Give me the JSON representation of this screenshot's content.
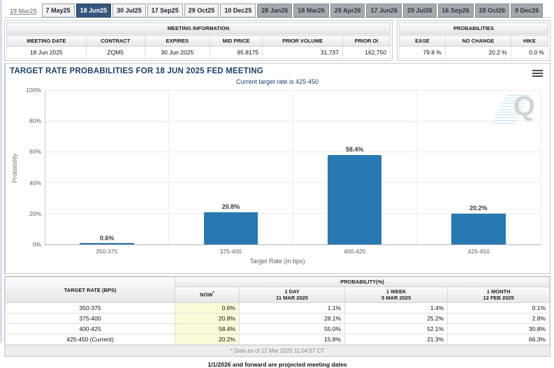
{
  "tabs": [
    {
      "label": "19 Mar25",
      "state": "past"
    },
    {
      "label": "7 May25",
      "state": "y25"
    },
    {
      "label": "18 Jun25",
      "state": "active"
    },
    {
      "label": "30 Jul25",
      "state": "y25"
    },
    {
      "label": "17 Sep25",
      "state": "y25"
    },
    {
      "label": "29 Oct25",
      "state": "y25"
    },
    {
      "label": "10 Dec25",
      "state": "y25"
    },
    {
      "label": "28 Jan26",
      "state": "y26"
    },
    {
      "label": "18 Mar26",
      "state": "y26"
    },
    {
      "label": "29 Apr26",
      "state": "y26"
    },
    {
      "label": "17 Jun26",
      "state": "y26"
    },
    {
      "label": "29 Jul26",
      "state": "y26"
    },
    {
      "label": "16 Sep26",
      "state": "y26"
    },
    {
      "label": "28 Oct26",
      "state": "y26"
    },
    {
      "label": "9 Dec26",
      "state": "y26"
    }
  ],
  "meeting_info": {
    "title": "MEETING INFORMATION",
    "columns": [
      "MEETING DATE",
      "CONTRACT",
      "EXPIRES",
      "MID PRICE",
      "PRIOR VOLUME",
      "PRIOR OI"
    ],
    "widths": [
      "20.7%",
      "15.3%",
      "17%",
      "13.7%",
      "20.9%",
      "12.4%"
    ],
    "values": [
      "18 Jun 2025",
      "ZQM5",
      "30 Jun 2025",
      "95.8175",
      "31,737",
      "162,750"
    ],
    "align": [
      "center",
      "center",
      "center",
      "right",
      "right",
      "right"
    ]
  },
  "probabilities_panel": {
    "title": "PROBABILITIES",
    "columns": [
      "EASE",
      "NO CHANGE",
      "HIKE"
    ],
    "widths": [
      "31%",
      "44%",
      "25%"
    ],
    "values": [
      "79.8 %",
      "20.2 %",
      "0.0 %"
    ],
    "align": [
      "right",
      "right",
      "right"
    ]
  },
  "chart": {
    "title": "TARGET RATE PROBABILITIES FOR 18 JUN 2025 FED MEETING",
    "subtitle": "Current target rate is 425-450",
    "watermark": "Q"
  },
  "chart_data": {
    "type": "bar",
    "categories": [
      "350-375",
      "375-400",
      "400-425",
      "425-450"
    ],
    "values": [
      0.6,
      20.8,
      58.4,
      20.2
    ],
    "labels": [
      "0.6%",
      "20.8%",
      "58.4%",
      "20.2%"
    ],
    "title": "TARGET RATE PROBABILITIES FOR 18 JUN 2025 FED MEETING",
    "subtitle": "Current target rate is 425-450",
    "xlabel": "Target Rate (in bps)",
    "ylabel": "Probability",
    "ylim": [
      0,
      100
    ],
    "yticks": [
      0,
      20,
      40,
      60,
      80,
      100
    ],
    "ytick_labels": [
      "0%",
      "20%",
      "40%",
      "60%",
      "80%",
      "100%"
    ],
    "bar_color": "#2779b4",
    "grid": true,
    "legend": false
  },
  "prob_table": {
    "col1_header": "TARGET RATE (BPS)",
    "group_header": "PROBABILITY(%)",
    "sub_headers": [
      {
        "line1": "NOW",
        "sup": "*",
        "line2": ""
      },
      {
        "line1": "1 DAY",
        "sup": "",
        "line2": "11 MAR 2025"
      },
      {
        "line1": "1 WEEK",
        "sup": "",
        "line2": "5 MAR 2025"
      },
      {
        "line1": "1 MONTH",
        "sup": "",
        "line2": "12 FEB 2025"
      }
    ],
    "col_widths": [
      "31.2%",
      "11.8%",
      "19.4%",
      "18.9%",
      "18.7%"
    ],
    "rows": [
      {
        "rate": "350-375",
        "now": "0.6%",
        "day": "1.1%",
        "week": "1.4%",
        "month": "0.1%"
      },
      {
        "rate": "375-400",
        "now": "20.8%",
        "day": "28.1%",
        "week": "25.2%",
        "month": "2.8%"
      },
      {
        "rate": "400-425",
        "now": "58.4%",
        "day": "55.0%",
        "week": "52.1%",
        "month": "30.8%"
      },
      {
        "rate": "425-450 (Current)",
        "now": "20.2%",
        "day": "15.8%",
        "week": "21.3%",
        "month": "66.3%"
      }
    ],
    "footnote": "* Data as of 12 Mar 2025 11:04:57 CT"
  },
  "footer_note": "1/1/2026 and forward are projected meeting dates",
  "colors": {
    "accent": "#2779b4",
    "active_tab": "#35567c",
    "now_highlight": "#fbfbd8",
    "title_navy": "#1c3f6e"
  }
}
